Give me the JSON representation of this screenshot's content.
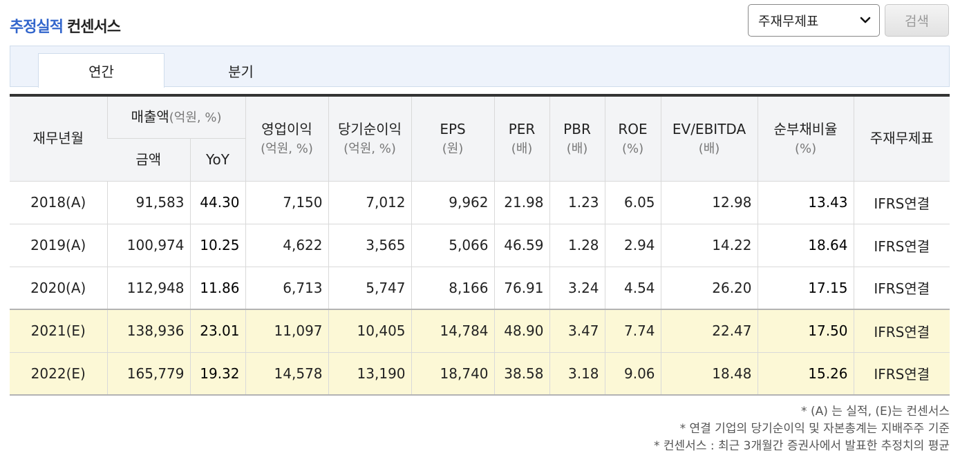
{
  "header": {
    "title_accent": "추정실적",
    "title_rest": "컨센서스"
  },
  "controls": {
    "select_value": "주재무제표",
    "search_label": "검색"
  },
  "tabs": [
    {
      "label": "연간",
      "active": true
    },
    {
      "label": "분기",
      "active": false
    }
  ],
  "table": {
    "headers": {
      "period": "재무년월",
      "sales": "매출액",
      "sales_unit": "(억원, %)",
      "amount": "금액",
      "yoy": "YoY",
      "op_income": "영업이익",
      "op_income_unit": "(억원, %)",
      "net_income": "당기순이익",
      "net_income_unit": "(억원, %)",
      "eps": "EPS",
      "eps_unit": "(원)",
      "per": "PER",
      "per_unit": "(배)",
      "pbr": "PBR",
      "pbr_unit": "(배)",
      "roe": "ROE",
      "roe_unit": "(%)",
      "ev": "EV/EBITDA",
      "ev_unit": "(배)",
      "debt": "순부채비율",
      "debt_unit": "(%)",
      "stmt": "주재무제표"
    },
    "rows": [
      {
        "period": "2018(A)",
        "amount": "91,583",
        "yoy": "44.30",
        "op": "7,150",
        "net": "7,012",
        "eps": "9,962",
        "per": "21.98",
        "pbr": "1.23",
        "roe": "6.05",
        "ev": "12.98",
        "debt": "13.43",
        "stmt": "IFRS연결"
      },
      {
        "period": "2019(A)",
        "amount": "100,974",
        "yoy": "10.25",
        "op": "4,622",
        "net": "3,565",
        "eps": "5,066",
        "per": "46.59",
        "pbr": "1.28",
        "roe": "2.94",
        "ev": "14.22",
        "debt": "18.64",
        "stmt": "IFRS연결"
      },
      {
        "period": "2020(A)",
        "amount": "112,948",
        "yoy": "11.86",
        "op": "6,713",
        "net": "5,747",
        "eps": "8,166",
        "per": "76.91",
        "pbr": "3.24",
        "roe": "4.54",
        "ev": "26.20",
        "debt": "17.15",
        "stmt": "IFRS연결"
      },
      {
        "period": "2021(E)",
        "amount": "138,936",
        "yoy": "23.01",
        "op": "11,097",
        "net": "10,405",
        "eps": "14,784",
        "per": "48.90",
        "pbr": "3.47",
        "roe": "7.74",
        "ev": "22.47",
        "debt": "17.50",
        "stmt": "IFRS연결"
      },
      {
        "period": "2022(E)",
        "amount": "165,779",
        "yoy": "19.32",
        "op": "14,578",
        "net": "13,190",
        "eps": "18,740",
        "per": "38.58",
        "pbr": "3.18",
        "roe": "9.06",
        "ev": "18.48",
        "debt": "15.26",
        "stmt": "IFRS연결"
      }
    ]
  },
  "notes": [
    "* (A) 는 실적, (E)는 컨센서스",
    "* 연결 기업의 당기순이익 및 자본총계는 지배주주 기준",
    "* 컨센서스 : 최근 3개월간 증권사에서 발표한 추정치의 평균"
  ],
  "colors": {
    "accent": "#3366cc",
    "estimate_row_bg": "#fcf8d6",
    "header_bg": "#f3f4f6",
    "tab_bg": "#eef3fb"
  },
  "icons": {
    "select_arrow": "chevron-down-icon"
  }
}
